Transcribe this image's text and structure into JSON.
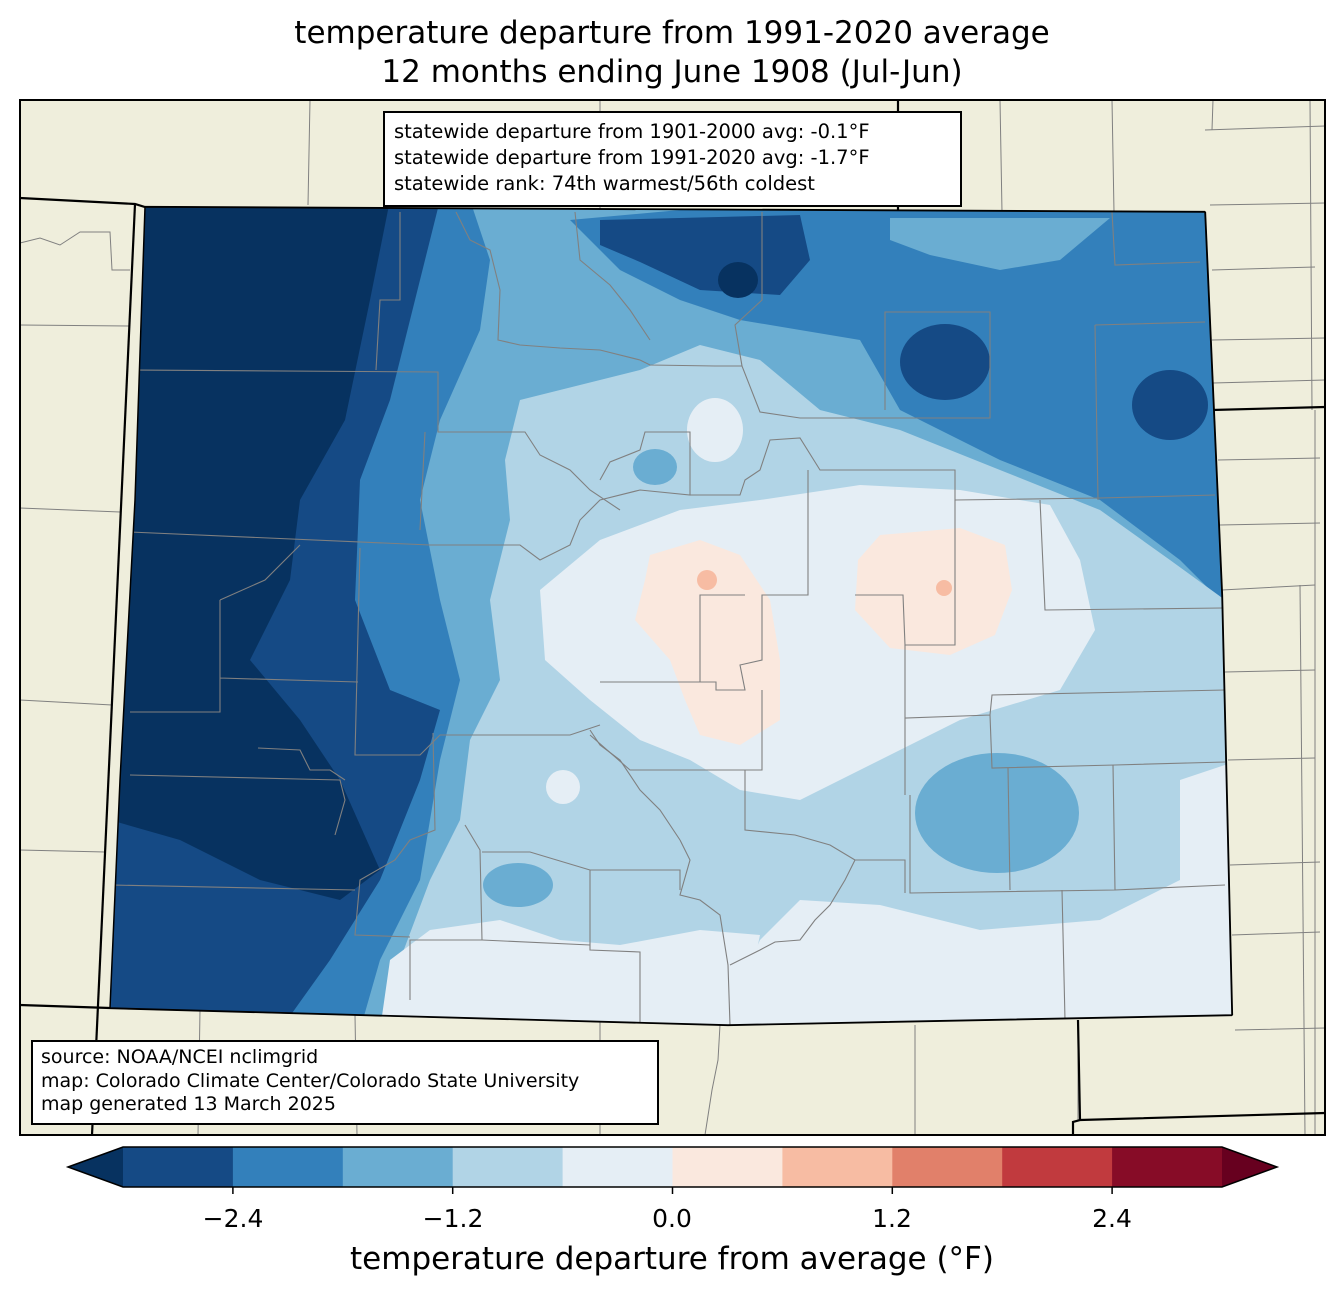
{
  "title": {
    "line1": "temperature departure from 1991-2020 average",
    "line2": "12 months ending June 1908 (Jul-Jun)"
  },
  "stats": {
    "line1": "statewide departure from 1901-2000 avg: -0.1°F",
    "line2": "statewide departure from 1991-2020 avg: -1.7°F",
    "line3": "statewide rank: 74th warmest/56th coldest"
  },
  "source": {
    "line1": "source: NOAA/NCEI nclimgrid",
    "line2": "map: Colorado Climate Center/Colorado State University",
    "line3": "map generated 13 March 2025"
  },
  "colorbar": {
    "label": "temperature departure from average (°F)",
    "bins": [
      {
        "from": -3.0,
        "to": -2.4,
        "color": "#154a85"
      },
      {
        "from": -2.4,
        "to": -1.8,
        "color": "#3380bb"
      },
      {
        "from": -1.8,
        "to": -1.2,
        "color": "#6aadd2"
      },
      {
        "from": -1.2,
        "to": -0.6,
        "color": "#b1d4e6"
      },
      {
        "from": -0.6,
        "to": 0.0,
        "color": "#e5eef5"
      },
      {
        "from": 0.0,
        "to": 0.6,
        "color": "#fae8de"
      },
      {
        "from": 0.6,
        "to": 1.2,
        "color": "#f7bca3"
      },
      {
        "from": 1.2,
        "to": 1.8,
        "color": "#e1806a"
      },
      {
        "from": 1.8,
        "to": 2.4,
        "color": "#c13a3e"
      },
      {
        "from": 2.4,
        "to": 3.0,
        "color": "#870c27"
      }
    ],
    "under_color": "#073260",
    "over_color": "#67001f",
    "ticks": [
      "−2.4",
      "−1.2",
      "0.0",
      "1.2",
      "2.4"
    ]
  },
  "colors": {
    "land": "#efeedc",
    "county_lines": "#808080",
    "state_lines": "#000000"
  }
}
